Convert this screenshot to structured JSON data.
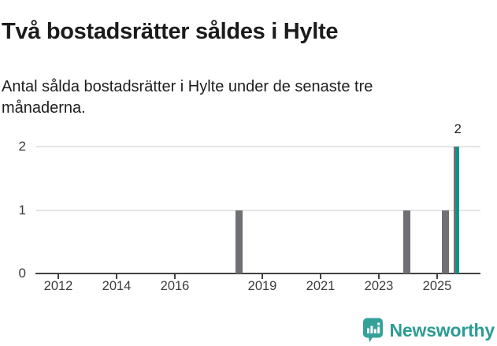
{
  "header": {
    "title": "Två bostadsrätter såldes i Hylte",
    "subtitle": "Antal sålda bostadsrätter i Hylte under de senaste tre månaderna."
  },
  "chart_data": {
    "type": "bar",
    "title": "Två bostadsrätter såldes i Hylte",
    "subtitle": "Antal sålda bostadsrätter i Hylte under de senaste tre månaderna.",
    "xlabel": "",
    "ylabel": "",
    "ylim": [
      0,
      2
    ],
    "y_ticks": [
      0,
      1,
      2
    ],
    "x_ticks": [
      2012,
      2014,
      2016,
      2019,
      2021,
      2023,
      2025
    ],
    "x_domain_years": [
      2011.2,
      2026.5
    ],
    "grid": "horizontal-only",
    "legend": "none",
    "bars": [
      {
        "month": "2018-02",
        "value": 1
      },
      {
        "month": "2018-03",
        "value": 1
      },
      {
        "month": "2018-04",
        "value": 1
      },
      {
        "month": "2023-11",
        "value": 1
      },
      {
        "month": "2023-12",
        "value": 1
      },
      {
        "month": "2024-01",
        "value": 1
      },
      {
        "month": "2025-03",
        "value": 1
      },
      {
        "month": "2025-04",
        "value": 1
      },
      {
        "month": "2025-05",
        "value": 1
      },
      {
        "month": "2025-08",
        "value": 2
      },
      {
        "month": "2025-09",
        "value": 2,
        "highlight": true
      }
    ],
    "annotation": {
      "text": "2",
      "month": "2025-09"
    },
    "colors": {
      "bar": "#6f6f74",
      "highlight": "#00968e",
      "gridline": "#e4e4e4",
      "axis": "#424242",
      "tick_label": "#3b3b3b",
      "text": "#1b1b1b"
    }
  },
  "footer": {
    "brand": "Newsworthy",
    "brand_color": "#2b9c94",
    "logo_icon": "bar-chart-speech-bubble-icon",
    "logo_color": "#35a29a"
  }
}
